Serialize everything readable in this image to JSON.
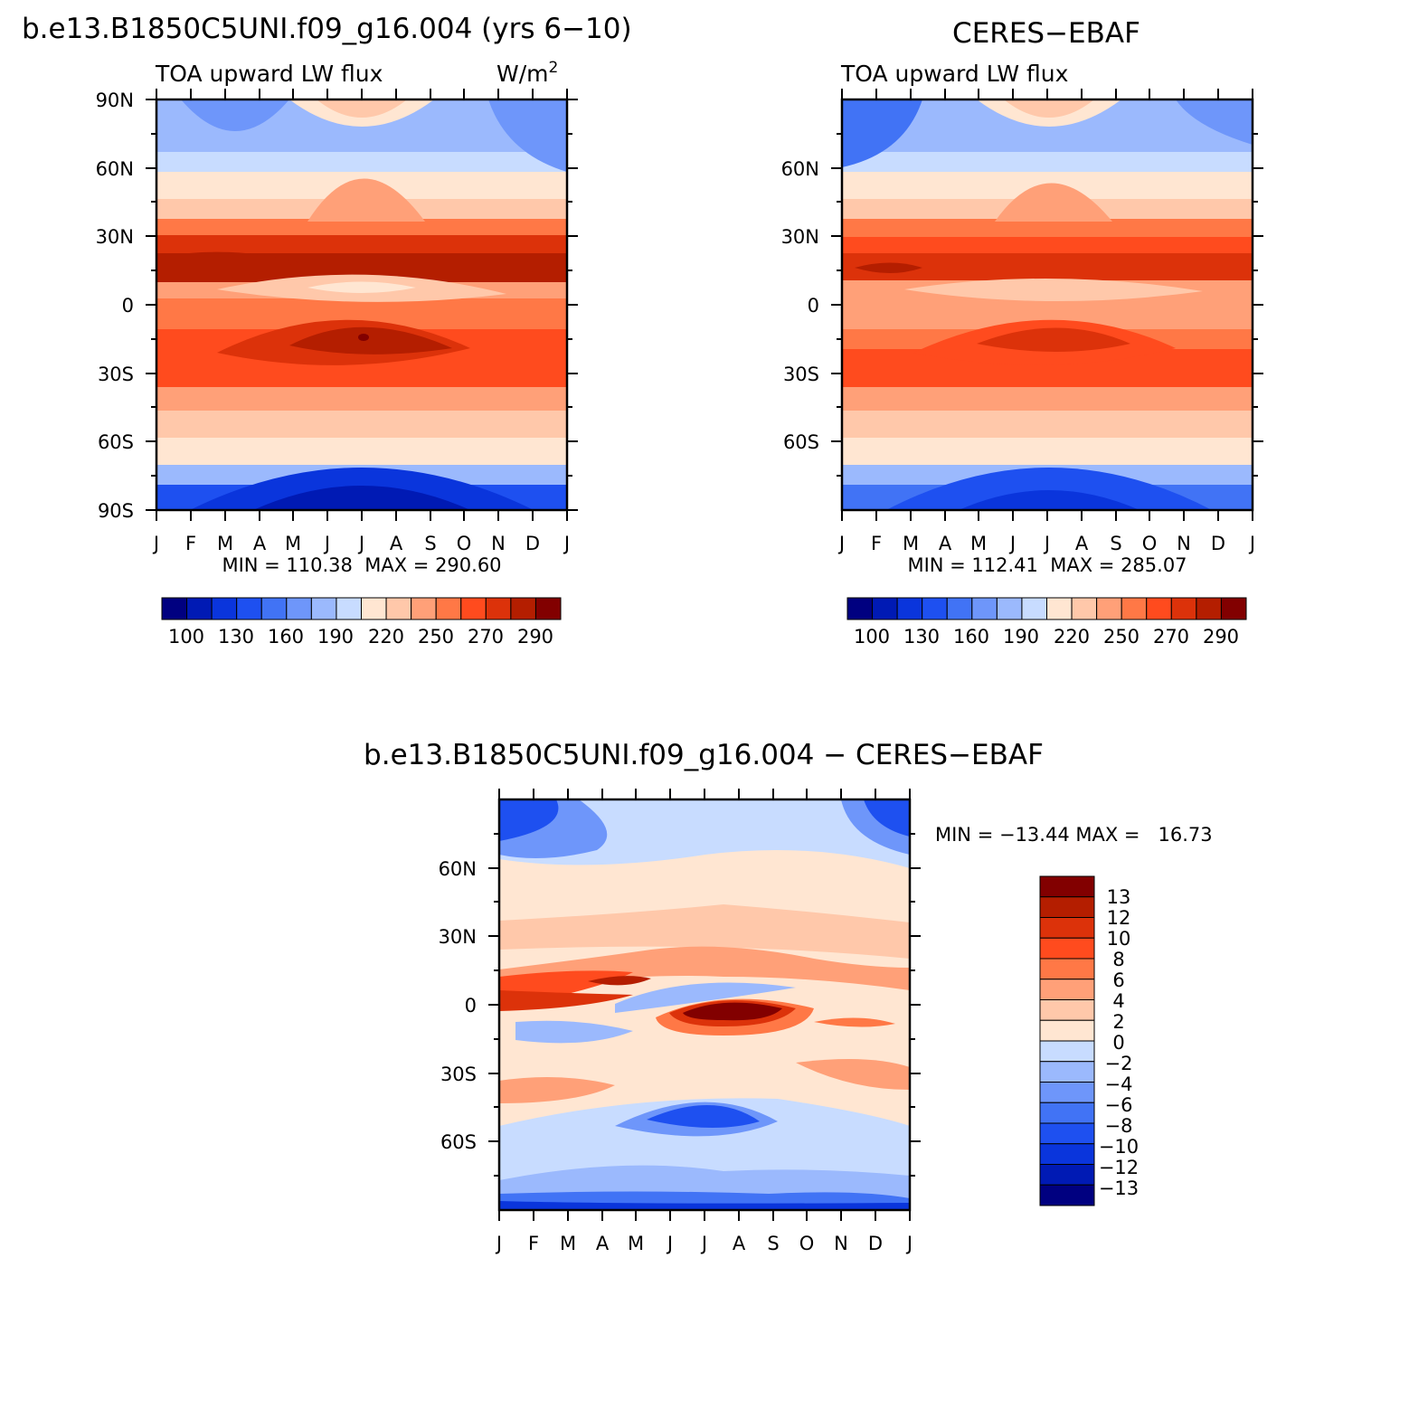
{
  "chart_data": [
    {
      "type": "heatmap",
      "id": "model",
      "title": "b.e13.B1850C5UNI.f09_g16.004 (yrs 6−10)",
      "subtitle_left": "TOA upward LW flux",
      "subtitle_right": "W/m",
      "subtitle_right_sup": "2",
      "stats": "MIN = 110.38  MAX = 290.60",
      "x_ticks": [
        "J",
        "F",
        "M",
        "A",
        "M",
        "J",
        "J",
        "A",
        "S",
        "O",
        "N",
        "D",
        "J"
      ],
      "y_ticks": [
        "90N",
        "60N",
        "30N",
        "0",
        "30S",
        "60S",
        "90S"
      ],
      "ylim": [
        -90,
        90
      ],
      "colorbar": {
        "orientation": "horizontal",
        "labels": [
          "100",
          "130",
          "160",
          "190",
          "220",
          "250",
          "270",
          "290"
        ],
        "colors": [
          "#000080",
          "#001ab4",
          "#0a35dc",
          "#1e50f0",
          "#4173f5",
          "#6e96fa",
          "#9bb9fd",
          "#c8dcff",
          "#ffe6d2",
          "#ffc8aa",
          "#ffa078",
          "#ff7846",
          "#ff4b1e",
          "#dc320a",
          "#b41e00",
          "#820000"
        ]
      }
    },
    {
      "type": "heatmap",
      "id": "obs",
      "title": "CERES−EBAF",
      "subtitle_left": "TOA upward LW flux",
      "stats": "MIN = 112.41  MAX = 285.07",
      "x_ticks": [
        "J",
        "F",
        "M",
        "A",
        "M",
        "J",
        "J",
        "A",
        "S",
        "O",
        "N",
        "D",
        "J"
      ],
      "y_ticks": [
        "60N",
        "30N",
        "0",
        "30S",
        "60S"
      ],
      "ylim": [
        -90,
        90
      ],
      "colorbar": {
        "orientation": "horizontal",
        "labels": [
          "100",
          "130",
          "160",
          "190",
          "220",
          "250",
          "270",
          "290"
        ],
        "colors": [
          "#000080",
          "#001ab4",
          "#0a35dc",
          "#1e50f0",
          "#4173f5",
          "#6e96fa",
          "#9bb9fd",
          "#c8dcff",
          "#ffe6d2",
          "#ffc8aa",
          "#ffa078",
          "#ff7846",
          "#ff4b1e",
          "#dc320a",
          "#b41e00",
          "#820000"
        ]
      }
    },
    {
      "type": "heatmap",
      "id": "diff",
      "title": "b.e13.B1850C5UNI.f09_g16.004 − CERES−EBAF",
      "stats": "MIN = −13.44 MAX =   16.73",
      "x_ticks": [
        "J",
        "F",
        "M",
        "A",
        "M",
        "J",
        "J",
        "A",
        "S",
        "O",
        "N",
        "D",
        "J"
      ],
      "y_ticks": [
        "60N",
        "30N",
        "0",
        "30S",
        "60S"
      ],
      "ylim": [
        -90,
        90
      ],
      "colorbar": {
        "orientation": "vertical",
        "labels": [
          "13",
          "12",
          "10",
          "8",
          "6",
          "4",
          "2",
          "0",
          "−2",
          "−4",
          "−6",
          "−8",
          "−10",
          "−12",
          "−13"
        ],
        "colors": [
          "#820000",
          "#b41e00",
          "#dc320a",
          "#ff4b1e",
          "#ff7846",
          "#ffa078",
          "#ffc8aa",
          "#ffe6d2",
          "#c8dcff",
          "#9bb9fd",
          "#6e96fa",
          "#4173f5",
          "#1e50f0",
          "#0a35dc",
          "#001ab4",
          "#000080"
        ]
      }
    }
  ]
}
